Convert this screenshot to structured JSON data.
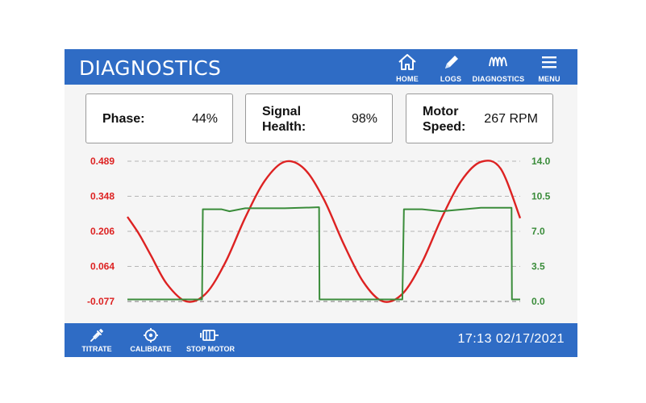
{
  "header": {
    "title": "DIAGNOSTICS",
    "nav": [
      {
        "label": "HOME",
        "icon": "home-icon"
      },
      {
        "label": "LOGS",
        "icon": "pencil-icon"
      },
      {
        "label": "DIAGNOSTICS",
        "icon": "waveform-icon"
      },
      {
        "label": "MENU",
        "icon": "hamburger-menu-icon"
      }
    ]
  },
  "cards": [
    {
      "label_line1": "Phase:",
      "label_line2": "",
      "value": "44%"
    },
    {
      "label_line1": "Signal",
      "label_line2": "Health:",
      "value": "98%"
    },
    {
      "label_line1": "Motor",
      "label_line2": "Speed:",
      "value": "267 RPM"
    }
  ],
  "chart_data": {
    "type": "line",
    "grid": true,
    "legend": "none",
    "left_axis": {
      "ticks": [
        "0.489",
        "0.348",
        "0.206",
        "0.064",
        "-0.077"
      ],
      "ylim": [
        -0.077,
        0.489
      ],
      "color": "#dd2222"
    },
    "right_axis": {
      "ticks": [
        "14.0",
        "10.5",
        "7.0",
        "3.5",
        "0.0"
      ],
      "ylim": [
        0.0,
        14.0
      ],
      "color": "#3a8c3a"
    },
    "series": [
      {
        "axis": "left",
        "color": "#dd2222",
        "x": [
          0,
          0.03,
          0.06,
          0.1,
          0.15,
          0.2,
          0.25,
          0.3,
          0.35,
          0.4,
          0.45,
          0.5,
          0.55,
          0.6,
          0.65,
          0.7,
          0.75,
          0.8,
          0.85,
          0.9,
          0.95,
          1.0
        ],
        "y": [
          0.2645,
          0.194,
          0.1082,
          -0.0056,
          -0.0769,
          -0.0447,
          0.0826,
          0.2615,
          0.4106,
          0.4865,
          0.4586,
          0.3356,
          0.157,
          0.0029,
          -0.0765,
          -0.0466,
          0.0803,
          0.2594,
          0.4096,
          0.4863,
          0.4594,
          0.2589
        ]
      },
      {
        "axis": "right",
        "color": "#3a8c3a",
        "x": [
          0,
          0.19,
          0.192,
          0.24,
          0.26,
          0.3,
          0.4,
          0.485,
          0.488,
          0.489,
          0.7,
          0.704,
          0.75,
          0.8,
          0.9,
          0.975,
          0.978,
          0.979,
          1.0
        ],
        "y": [
          0.2,
          0.2,
          9.2,
          9.2,
          9.0,
          9.3,
          9.3,
          9.4,
          9.4,
          0.2,
          0.2,
          9.2,
          9.2,
          9.0,
          9.35,
          9.35,
          9.35,
          0.2,
          0.2
        ]
      }
    ]
  },
  "footer": {
    "buttons": [
      {
        "label": "TITRATE",
        "icon": "syringe-icon"
      },
      {
        "label": "CALIBRATE",
        "icon": "target-icon"
      },
      {
        "label": "STOP MOTOR",
        "icon": "motor-icon"
      }
    ],
    "datetime": "17:13 02/17/2021"
  }
}
